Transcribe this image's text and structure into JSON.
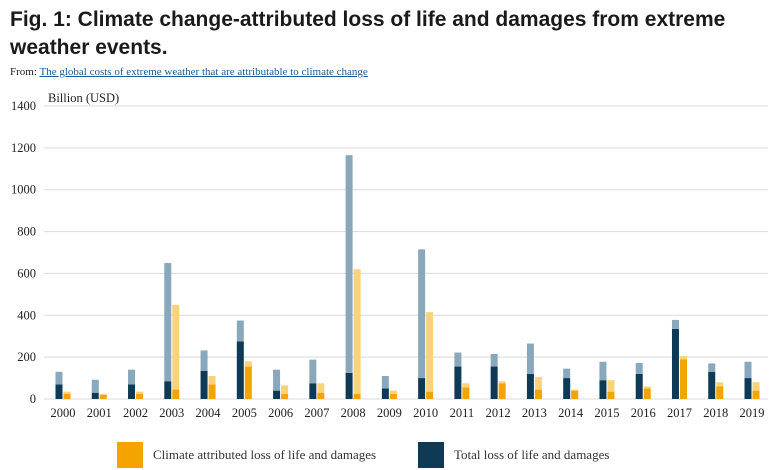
{
  "header": {
    "title": "Fig. 1: Climate change-attributed loss of life and damages from extreme weather events.",
    "from_label": "From:",
    "source_link": "The global costs of extreme weather that are attributable to climate change"
  },
  "colors": {
    "total_dark": "#0e3a56",
    "total_light": "#8aa8bb",
    "attributed_dark": "#f5a300",
    "attributed_light": "#f9d37a"
  },
  "chart_data": {
    "type": "bar",
    "ylabel": "Billion (USD)",
    "ylim": [
      0,
      1400
    ],
    "yticks": [
      0,
      200,
      400,
      600,
      800,
      1000,
      1200,
      1400
    ],
    "grid": true,
    "legend_position": "bottom",
    "categories": [
      "2000",
      "2001",
      "2002",
      "2003",
      "2004",
      "2005",
      "2006",
      "2007",
      "2008",
      "2009",
      "2010",
      "2011",
      "2012",
      "2013",
      "2014",
      "2015",
      "2016",
      "2017",
      "2018",
      "2019"
    ],
    "series": [
      {
        "name": "Total loss of life and damages",
        "values": [
          130,
          92,
          140,
          650,
          232,
          375,
          140,
          188,
          1165,
          110,
          715,
          222,
          215,
          265,
          145,
          178,
          172,
          378,
          170,
          178
        ],
        "dark_portion": [
          70,
          30,
          70,
          85,
          135,
          275,
          40,
          75,
          125,
          50,
          100,
          155,
          155,
          120,
          100,
          90,
          120,
          335,
          130,
          100
        ]
      },
      {
        "name": "Climate attributed loss of life and damages",
        "values": [
          35,
          25,
          35,
          450,
          110,
          180,
          65,
          75,
          620,
          40,
          415,
          75,
          85,
          105,
          45,
          90,
          60,
          205,
          80,
          80
        ],
        "dark_portion": [
          25,
          20,
          25,
          45,
          70,
          155,
          25,
          30,
          25,
          25,
          35,
          55,
          75,
          45,
          40,
          35,
          50,
          190,
          60,
          40
        ]
      }
    ]
  },
  "legend": {
    "items": [
      {
        "label": "Climate attributed loss of life and damages"
      },
      {
        "label": "Total loss of life and damages"
      }
    ]
  }
}
